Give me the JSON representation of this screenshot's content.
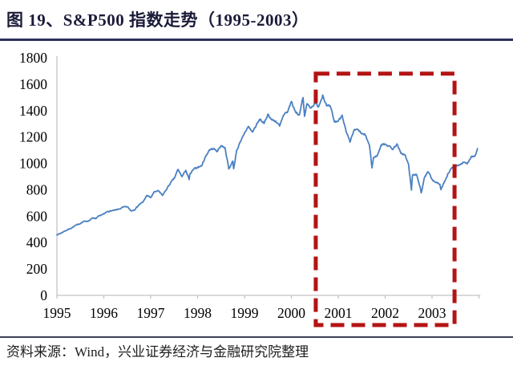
{
  "header": {
    "figure_label": "图 19、",
    "title": "图 19、S&P500 指数走势（1995-2003）"
  },
  "footer": {
    "source": "资料来源：Wind，兴业证券经济与金融研究院整理"
  },
  "colors": {
    "title_divider": "#2e2e5e",
    "footer_divider": "#3f3f58",
    "axis": "#c3c3c3",
    "tick_label": "#000000",
    "line": "#4a80c2",
    "highlight": "#b41414",
    "background": "#ffffff"
  },
  "chart_data": {
    "type": "line",
    "title": "S&P500 指数走势（1995-2003）",
    "xlabel": "",
    "ylabel": "",
    "xlim": [
      1995,
      2004.03
    ],
    "ylim": [
      0,
      1800
    ],
    "grid": false,
    "legend_position": "none",
    "y_ticks": [
      0,
      200,
      400,
      600,
      800,
      1000,
      1200,
      1400,
      1600,
      1800
    ],
    "x_ticks": [
      1995,
      1996,
      1997,
      1998,
      1999,
      2000,
      2001,
      2002,
      2003,
      2004
    ],
    "x_tick_labels": [
      "1995",
      "1996",
      "1997",
      "1998",
      "1999",
      "2000",
      "2001",
      "2002",
      "2003"
    ],
    "highlight_box": {
      "style": "dashed",
      "color": "#b41414",
      "x_start": 2000.52,
      "x_end": 2003.48,
      "y_top_value": 1680,
      "y_bottom_value": -225,
      "note": "2000-2003 bear market region"
    },
    "series": [
      {
        "name": "S&P500",
        "color": "#4a80c2",
        "points": [
          [
            1995.0,
            459.2
          ],
          [
            1995.083,
            470.4
          ],
          [
            1995.167,
            487.4
          ],
          [
            1995.25,
            500.7
          ],
          [
            1995.333,
            514.7
          ],
          [
            1995.417,
            533.4
          ],
          [
            1995.5,
            544.8
          ],
          [
            1995.583,
            562.1
          ],
          [
            1995.667,
            561.9
          ],
          [
            1995.75,
            584.4
          ],
          [
            1995.833,
            581.5
          ],
          [
            1995.917,
            605.4
          ],
          [
            1996.0,
            615.9
          ],
          [
            1996.083,
            636.0
          ],
          [
            1996.167,
            640.4
          ],
          [
            1996.25,
            645.5
          ],
          [
            1996.333,
            654.2
          ],
          [
            1996.417,
            669.1
          ],
          [
            1996.5,
            670.6
          ],
          [
            1996.583,
            639.9
          ],
          [
            1996.667,
            651.9
          ],
          [
            1996.75,
            687.3
          ],
          [
            1996.833,
            705.3
          ],
          [
            1996.917,
            757.0
          ],
          [
            1997.0,
            740.7
          ],
          [
            1997.083,
            786.2
          ],
          [
            1997.167,
            790.8
          ],
          [
            1997.25,
            757.1
          ],
          [
            1997.333,
            801.3
          ],
          [
            1997.417,
            848.3
          ],
          [
            1997.5,
            885.1
          ],
          [
            1997.583,
            954.3
          ],
          [
            1997.667,
            899.5
          ],
          [
            1997.75,
            947.3
          ],
          [
            1997.82,
            877.0
          ],
          [
            1997.833,
            914.6
          ],
          [
            1997.917,
            955.4
          ],
          [
            1998.0,
            970.4
          ],
          [
            1998.083,
            980.3
          ],
          [
            1998.167,
            1049.3
          ],
          [
            1998.25,
            1101.8
          ],
          [
            1998.333,
            1111.8
          ],
          [
            1998.417,
            1090.8
          ],
          [
            1998.5,
            1133.8
          ],
          [
            1998.583,
            1120.7
          ],
          [
            1998.667,
            957.3
          ],
          [
            1998.75,
            1017.0
          ],
          [
            1998.77,
            959.4
          ],
          [
            1998.833,
            1098.7
          ],
          [
            1998.917,
            1163.6
          ],
          [
            1999.0,
            1229.2
          ],
          [
            1999.083,
            1279.6
          ],
          [
            1999.167,
            1238.3
          ],
          [
            1999.25,
            1286.4
          ],
          [
            1999.333,
            1335.2
          ],
          [
            1999.417,
            1301.8
          ],
          [
            1999.5,
            1372.7
          ],
          [
            1999.583,
            1328.7
          ],
          [
            1999.667,
            1320.4
          ],
          [
            1999.75,
            1282.7
          ],
          [
            1999.833,
            1362.9
          ],
          [
            1999.917,
            1388.9
          ],
          [
            2000.0,
            1469.3
          ],
          [
            2000.083,
            1394.5
          ],
          [
            2000.167,
            1366.4
          ],
          [
            2000.25,
            1498.6
          ],
          [
            2000.28,
            1356.6
          ],
          [
            2000.333,
            1452.4
          ],
          [
            2000.417,
            1420.6
          ],
          [
            2000.5,
            1454.6
          ],
          [
            2000.583,
            1430.8
          ],
          [
            2000.667,
            1517.7
          ],
          [
            2000.75,
            1436.5
          ],
          [
            2000.833,
            1429.4
          ],
          [
            2000.917,
            1315.0
          ],
          [
            2001.0,
            1320.3
          ],
          [
            2001.083,
            1366.0
          ],
          [
            2001.167,
            1239.9
          ],
          [
            2001.25,
            1160.3
          ],
          [
            2001.333,
            1249.5
          ],
          [
            2001.417,
            1255.8
          ],
          [
            2001.5,
            1224.4
          ],
          [
            2001.583,
            1211.2
          ],
          [
            2001.667,
            1133.6
          ],
          [
            2001.72,
            965.8
          ],
          [
            2001.75,
            1040.9
          ],
          [
            2001.833,
            1059.8
          ],
          [
            2001.917,
            1139.5
          ],
          [
            2002.0,
            1148.1
          ],
          [
            2002.083,
            1130.2
          ],
          [
            2002.167,
            1106.7
          ],
          [
            2002.25,
            1147.4
          ],
          [
            2002.333,
            1076.9
          ],
          [
            2002.417,
            1067.1
          ],
          [
            2002.5,
            989.8
          ],
          [
            2002.56,
            797.7
          ],
          [
            2002.583,
            911.6
          ],
          [
            2002.667,
            916.1
          ],
          [
            2002.75,
            815.3
          ],
          [
            2002.77,
            776.8
          ],
          [
            2002.833,
            885.8
          ],
          [
            2002.917,
            936.3
          ],
          [
            2003.0,
            879.8
          ],
          [
            2003.083,
            855.7
          ],
          [
            2003.167,
            841.2
          ],
          [
            2003.19,
            800.7
          ],
          [
            2003.25,
            848.2
          ],
          [
            2003.333,
            916.9
          ],
          [
            2003.417,
            963.6
          ],
          [
            2003.5,
            974.5
          ],
          [
            2003.583,
            990.3
          ],
          [
            2003.667,
            1008.0
          ],
          [
            2003.75,
            996.0
          ],
          [
            2003.833,
            1050.7
          ],
          [
            2003.917,
            1058.2
          ],
          [
            2003.97,
            1111.9
          ]
        ]
      }
    ]
  }
}
